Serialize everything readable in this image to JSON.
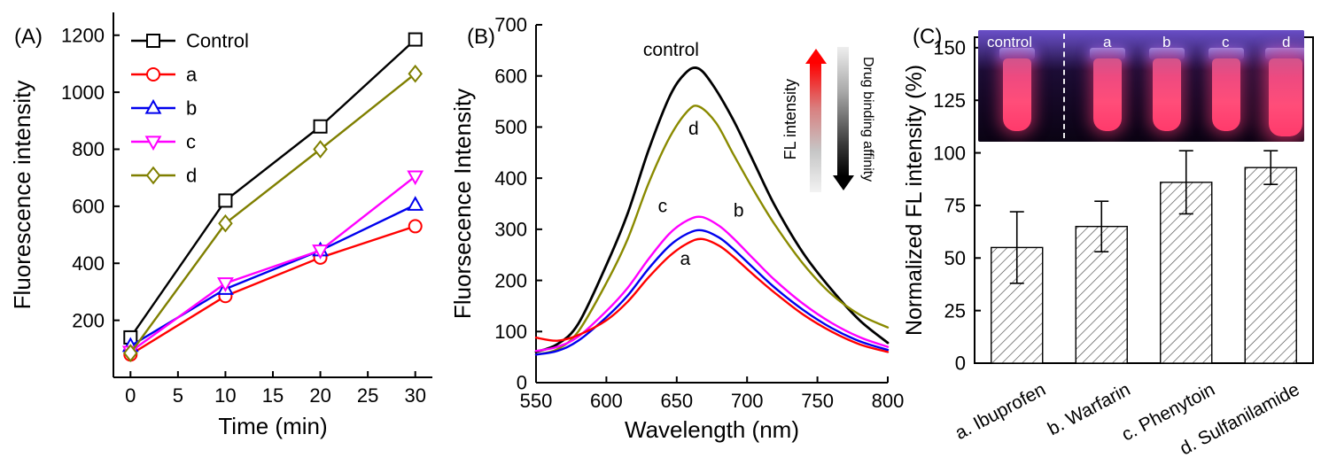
{
  "panels": {
    "a": {
      "label": "(A)"
    },
    "b": {
      "label": "(B)"
    },
    "c": {
      "label": "(C)"
    }
  },
  "chart_data": [
    {
      "type": "line",
      "panel": "A",
      "title": "",
      "xlabel": "Time (min)",
      "ylabel": "Fluorescence intensity",
      "xlim": [
        -1.8,
        31.8
      ],
      "ylim": [
        0,
        1280
      ],
      "xticks": [
        0,
        5,
        10,
        15,
        20,
        25,
        30
      ],
      "yticks": [
        200,
        400,
        600,
        800,
        1000,
        1200
      ],
      "grid": false,
      "legend_position": "top-left",
      "x": [
        0,
        10,
        20,
        30
      ],
      "series": [
        {
          "name": "Control",
          "color": "#000000",
          "marker": "square",
          "values": [
            140,
            620,
            880,
            1185
          ]
        },
        {
          "name": "a",
          "color": "#ff0000",
          "marker": "circle",
          "values": [
            80,
            285,
            420,
            530
          ]
        },
        {
          "name": "b",
          "color": "#0000ee",
          "marker": "triangle-up",
          "values": [
            110,
            310,
            445,
            605
          ]
        },
        {
          "name": "c",
          "color": "#ff00ff",
          "marker": "triangle-down",
          "values": [
            90,
            330,
            445,
            705
          ]
        },
        {
          "name": "d",
          "color": "#7f7f00",
          "marker": "diamond",
          "values": [
            85,
            540,
            800,
            1065
          ]
        }
      ]
    },
    {
      "type": "line",
      "panel": "B",
      "title": "",
      "xlabel": "Wavelength (nm)",
      "ylabel": "Fluorsecence Intensity",
      "xlim": [
        550,
        800
      ],
      "ylim": [
        0,
        700
      ],
      "xticks": [
        550,
        600,
        650,
        700,
        750,
        800
      ],
      "yticks": [
        0,
        100,
        200,
        300,
        400,
        500,
        600,
        700
      ],
      "grid": false,
      "series": [
        {
          "name": "control",
          "color": "#000000",
          "points": [
            [
              550,
              60
            ],
            [
              565,
              75
            ],
            [
              580,
              115
            ],
            [
              600,
              230
            ],
            [
              615,
              330
            ],
            [
              630,
              455
            ],
            [
              645,
              560
            ],
            [
              656,
              605
            ],
            [
              665,
              615
            ],
            [
              675,
              585
            ],
            [
              690,
              515
            ],
            [
              705,
              430
            ],
            [
              720,
              345
            ],
            [
              740,
              253
            ],
            [
              760,
              182
            ],
            [
              780,
              122
            ],
            [
              800,
              78
            ]
          ]
        },
        {
          "name": "d",
          "color": "#8a8a00",
          "points": [
            [
              550,
              55
            ],
            [
              565,
              65
            ],
            [
              580,
              100
            ],
            [
              600,
              195
            ],
            [
              615,
              280
            ],
            [
              630,
              390
            ],
            [
              645,
              480
            ],
            [
              658,
              532
            ],
            [
              666,
              540
            ],
            [
              678,
              508
            ],
            [
              690,
              448
            ],
            [
              705,
              375
            ],
            [
              720,
              308
            ],
            [
              740,
              232
            ],
            [
              760,
              173
            ],
            [
              780,
              133
            ],
            [
              800,
              108
            ]
          ]
        },
        {
          "name": "c",
          "color": "#ff00ff",
          "points": [
            [
              550,
              62
            ],
            [
              565,
              70
            ],
            [
              580,
              90
            ],
            [
              600,
              140
            ],
            [
              615,
              185
            ],
            [
              630,
              242
            ],
            [
              645,
              292
            ],
            [
              658,
              318
            ],
            [
              668,
              324
            ],
            [
              680,
              307
            ],
            [
              690,
              283
            ],
            [
              705,
              241
            ],
            [
              720,
              200
            ],
            [
              740,
              154
            ],
            [
              760,
              117
            ],
            [
              780,
              89
            ],
            [
              800,
              70
            ]
          ]
        },
        {
          "name": "b",
          "color": "#0000ee",
          "points": [
            [
              550,
              55
            ],
            [
              565,
              62
            ],
            [
              580,
              82
            ],
            [
              600,
              128
            ],
            [
              615,
              170
            ],
            [
              630,
              223
            ],
            [
              645,
              268
            ],
            [
              658,
              292
            ],
            [
              668,
              298
            ],
            [
              680,
              284
            ],
            [
              690,
              262
            ],
            [
              705,
              223
            ],
            [
              720,
              185
            ],
            [
              740,
              142
            ],
            [
              760,
              107
            ],
            [
              780,
              81
            ],
            [
              800,
              64
            ]
          ]
        },
        {
          "name": "a",
          "color": "#ff0000",
          "points": [
            [
              550,
              88
            ],
            [
              565,
              82
            ],
            [
              580,
              93
            ],
            [
              600,
              122
            ],
            [
              615,
              158
            ],
            [
              630,
              206
            ],
            [
              645,
              248
            ],
            [
              658,
              273
            ],
            [
              668,
              281
            ],
            [
              680,
              268
            ],
            [
              690,
              247
            ],
            [
              705,
              210
            ],
            [
              720,
              175
            ],
            [
              740,
              133
            ],
            [
              760,
              100
            ],
            [
              780,
              75
            ],
            [
              800,
              60
            ]
          ]
        }
      ],
      "annotations": [
        {
          "text": "control",
          "x": 646,
          "y": 652,
          "color": "#000000"
        },
        {
          "text": "d",
          "x": 662,
          "y": 498,
          "color": "#8a8a00"
        },
        {
          "text": "c",
          "x": 640,
          "y": 346,
          "color": "#ff00ff"
        },
        {
          "text": "b",
          "x": 694,
          "y": 338,
          "color": "#0000ee"
        },
        {
          "text": "a",
          "x": 656,
          "y": 243,
          "color": "#ff0000"
        }
      ],
      "inset": {
        "fl_label": "FL intensity",
        "affinity_label": "Drug binding affinity",
        "fl_arrow_color": "#ff0000",
        "affinity_arrow_color": "#000000"
      }
    },
    {
      "type": "bar",
      "panel": "C",
      "title": "",
      "xlabel": "",
      "ylabel": "Normalized FL intensity (%)",
      "ylim": [
        0,
        155
      ],
      "yticks": [
        0,
        25,
        50,
        75,
        100,
        125,
        150
      ],
      "grid": false,
      "categories": [
        "a. Ibuprofen",
        "b. Warfarin",
        "c. Phenytoin",
        "d. Sulfanilamide"
      ],
      "values": [
        55,
        65,
        86,
        93
      ],
      "errors": [
        17,
        12,
        15,
        8
      ],
      "inset": {
        "labels": [
          "control",
          "a",
          "b",
          "c",
          "d"
        ],
        "tube_color": "#ff4d79",
        "photo_bg": "#150826"
      }
    }
  ]
}
